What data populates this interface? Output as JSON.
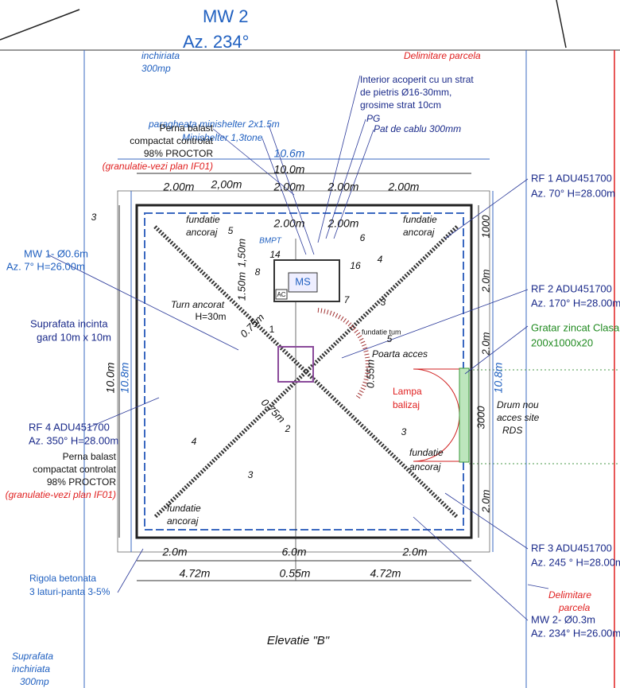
{
  "labels": [
    "MW 2",
    "Az. 234°",
    "inchiriata",
    "300mp",
    "Delimitare parcela",
    "Interior acoperit cu un strat",
    "de pietris Ø16-30mm,",
    "grosime strat 10cm",
    "PG",
    "Pat de cablu 300mm",
    "paragheata minishelter 2x1.5m",
    "Minishelter 1,3tone",
    "Perna balast",
    "compactat controlat",
    "98% PROCTOR",
    "(granulatie-vezi plan IF01)",
    "10.6m",
    "10.0m",
    "2.00m",
    "2,00m",
    "2.00m",
    "2.00m",
    "2.00m",
    "RF 1 ADU451700",
    "Az. 70° H=28.00m",
    "3",
    "fundatie",
    "ancoraj",
    "5",
    "2.00m",
    "2.00m",
    "fundatie",
    "ancoraj",
    "1000",
    "1,50m",
    "BMPT",
    "14",
    "6",
    "8",
    "MS",
    "AC",
    "1.50m",
    "16",
    "4",
    "MW 1- Ø0.6m",
    "Az. 7° H=26.00m",
    "2.0m",
    "RF 2 ADU451700",
    "Az. 170° H=28.00m",
    "Turn ancorat",
    "H=30m",
    "7",
    "3",
    "Suprafata incinta",
    "gard 10m x 10m",
    "Gratar zincat Clasa A",
    "200x1000x20",
    "0.75m",
    "1",
    "fundatie tum",
    "Poarta acces",
    "5",
    "2.0m",
    "10.0m",
    "10.8m",
    "0.55m",
    "10.8m",
    "Lampa",
    "balizaj",
    "3000",
    "Drum nou",
    "acces site",
    "RDS",
    "RF 4 ADU451700",
    "Az. 350° H=28.00m",
    "0.75m",
    "2",
    "3",
    "Perna balast",
    "compactat controlat",
    "98% PROCTOR",
    "(granulatie-vezi plan IF01)",
    "4",
    "3",
    "fundatie",
    "ancoraj",
    "fundatie",
    "ancoraj",
    "2.0m",
    "RF 3 ADU451700",
    "Az. 245 ° H=28.00m",
    "2.0m",
    "6.0m",
    "2.0m",
    "4.72m",
    "0.55m",
    "4.72m",
    "Rigola betonata",
    "3 laturi-panta 3-5%",
    "Delimitare",
    "parcela",
    "MW 2- Ø0.3m",
    "Az. 234° H=26.00m",
    "Elevatie \"B\"",
    "Suprafata",
    "inchiriata",
    "300mp"
  ]
}
